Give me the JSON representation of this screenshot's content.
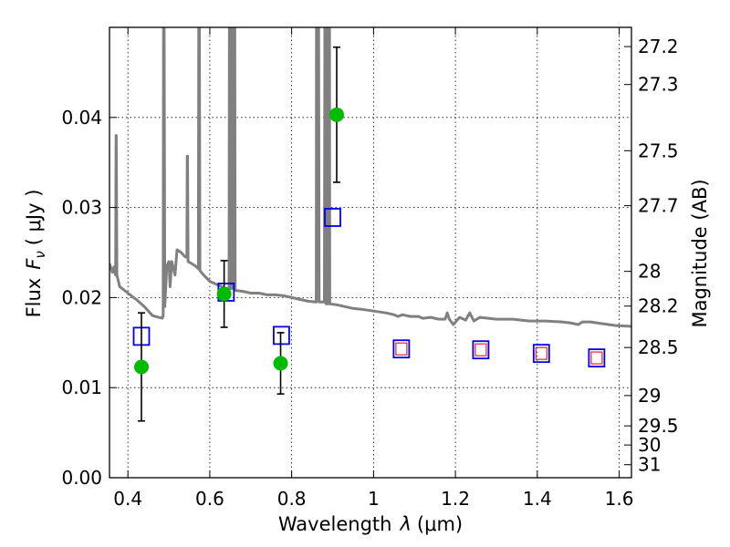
{
  "chart_data": {
    "type": "scatter",
    "xlabel_prefix": "Wavelength",
    "xlabel_symbol": "λ",
    "xlabel_unit": "(μm)",
    "ylabel_prefix": "Flux",
    "ylabel_symbol": "F",
    "ylabel_subscript": "ν",
    "ylabel_unit": "( μJy )",
    "y2label": "Magnitude (AB)",
    "xlim": [
      0.355,
      1.63
    ],
    "ylim": [
      0.0,
      0.05
    ],
    "grid": true,
    "x_ticks": [
      0.4,
      0.6,
      0.8,
      1.0,
      1.2,
      1.4,
      1.6
    ],
    "x_tick_labels": [
      "0.4",
      "0.6",
      "0.8",
      "1",
      "1.2",
      "1.4",
      "1.6"
    ],
    "y_ticks": [
      0.0,
      0.01,
      0.02,
      0.03,
      0.04
    ],
    "y_tick_labels": [
      "0.00",
      "0.01",
      "0.02",
      "0.03",
      "0.04"
    ],
    "y2_ticks": [
      27.2,
      27.3,
      27.5,
      27.7,
      28,
      28.2,
      28.5,
      29,
      29.5,
      30,
      31
    ],
    "y2_tick_labels": [
      "27.2",
      "27.3",
      "27.5",
      "27.7",
      "28",
      "28.2",
      "28.5",
      "29",
      "29.5",
      "30",
      "31"
    ],
    "colors": {
      "observed": "#00bb00",
      "model_photometry": "#0000ee",
      "model_photometry_inner": "#ee2222",
      "spectrum": "#808080",
      "errorbar": "#000000"
    },
    "observed_points": [
      {
        "x": 0.433,
        "y": 0.0123,
        "err": 0.006
      },
      {
        "x": 0.635,
        "y": 0.0204,
        "err": 0.0037
      },
      {
        "x": 0.773,
        "y": 0.0127,
        "err": 0.0034
      },
      {
        "x": 0.91,
        "y": 0.0403,
        "err": 0.0075
      }
    ],
    "model_points": [
      {
        "x": 0.433,
        "y": 0.0157,
        "inner": false
      },
      {
        "x": 0.64,
        "y": 0.0206,
        "inner": false
      },
      {
        "x": 0.775,
        "y": 0.0158,
        "inner": false
      },
      {
        "x": 0.9,
        "y": 0.0289,
        "inner": false
      },
      {
        "x": 1.068,
        "y": 0.0143,
        "inner": true
      },
      {
        "x": 1.262,
        "y": 0.0142,
        "inner": true
      },
      {
        "x": 1.41,
        "y": 0.0138,
        "inner": true
      },
      {
        "x": 1.545,
        "y": 0.0133,
        "inner": true
      }
    ],
    "spectrum": [
      [
        0.355,
        0.0238
      ],
      [
        0.362,
        0.0228
      ],
      [
        0.366,
        0.0234
      ],
      [
        0.368,
        0.0228
      ],
      [
        0.37,
        0.0225
      ],
      [
        0.371,
        0.038
      ],
      [
        0.3715,
        0.038
      ],
      [
        0.373,
        0.0225
      ],
      [
        0.38,
        0.0212
      ],
      [
        0.4,
        0.0205
      ],
      [
        0.42,
        0.0198
      ],
      [
        0.44,
        0.019
      ],
      [
        0.46,
        0.018
      ],
      [
        0.475,
        0.0178
      ],
      [
        0.484,
        0.0177
      ],
      [
        0.486,
        0.018
      ],
      [
        0.487,
        0.05
      ],
      [
        0.4885,
        0.05
      ],
      [
        0.49,
        0.019
      ],
      [
        0.495,
        0.0235
      ],
      [
        0.5,
        0.024
      ],
      [
        0.503,
        0.0212
      ],
      [
        0.507,
        0.024
      ],
      [
        0.515,
        0.0225
      ],
      [
        0.52,
        0.0253
      ],
      [
        0.53,
        0.025
      ],
      [
        0.54,
        0.0245
      ],
      [
        0.544,
        0.0245
      ],
      [
        0.545,
        0.0357
      ],
      [
        0.5455,
        0.0357
      ],
      [
        0.547,
        0.024
      ],
      [
        0.555,
        0.0238
      ],
      [
        0.565,
        0.0235
      ],
      [
        0.572,
        0.0232
      ],
      [
        0.573,
        0.05
      ],
      [
        0.5745,
        0.05
      ],
      [
        0.576,
        0.023
      ],
      [
        0.585,
        0.0225
      ],
      [
        0.6,
        0.0218
      ],
      [
        0.62,
        0.0214
      ],
      [
        0.64,
        0.021
      ],
      [
        0.647,
        0.021
      ],
      [
        0.648,
        0.05
      ],
      [
        0.65,
        0.05
      ],
      [
        0.651,
        0.021
      ],
      [
        0.653,
        0.021
      ],
      [
        0.654,
        0.05
      ],
      [
        0.6555,
        0.05
      ],
      [
        0.657,
        0.021
      ],
      [
        0.658,
        0.021
      ],
      [
        0.659,
        0.05
      ],
      [
        0.661,
        0.05
      ],
      [
        0.662,
        0.0208
      ],
      [
        0.68,
        0.0207
      ],
      [
        0.7,
        0.0205
      ],
      [
        0.72,
        0.0205
      ],
      [
        0.74,
        0.0203
      ],
      [
        0.76,
        0.0203
      ],
      [
        0.78,
        0.0202
      ],
      [
        0.8,
        0.02
      ],
      [
        0.82,
        0.0198
      ],
      [
        0.84,
        0.0196
      ],
      [
        0.86,
        0.0195
      ],
      [
        0.8605,
        0.05
      ],
      [
        0.866,
        0.05
      ],
      [
        0.867,
        0.0195
      ],
      [
        0.88,
        0.0195
      ],
      [
        0.881,
        0.05
      ],
      [
        0.8835,
        0.05
      ],
      [
        0.884,
        0.0193
      ],
      [
        0.889,
        0.0193
      ],
      [
        0.89,
        0.05
      ],
      [
        0.8925,
        0.05
      ],
      [
        0.893,
        0.0193
      ],
      [
        0.91,
        0.0192
      ],
      [
        0.93,
        0.019
      ],
      [
        0.95,
        0.0188
      ],
      [
        0.97,
        0.0187
      ],
      [
        1.0,
        0.0185
      ],
      [
        1.03,
        0.0183
      ],
      [
        1.05,
        0.0181
      ],
      [
        1.06,
        0.0179
      ],
      [
        1.07,
        0.0181
      ],
      [
        1.09,
        0.0179
      ],
      [
        1.11,
        0.0179
      ],
      [
        1.12,
        0.0177
      ],
      [
        1.14,
        0.0178
      ],
      [
        1.16,
        0.0176
      ],
      [
        1.175,
        0.0176
      ],
      [
        1.18,
        0.0183
      ],
      [
        1.185,
        0.0176
      ],
      [
        1.195,
        0.017
      ],
      [
        1.21,
        0.0178
      ],
      [
        1.225,
        0.0175
      ],
      [
        1.235,
        0.0183
      ],
      [
        1.245,
        0.0174
      ],
      [
        1.26,
        0.0178
      ],
      [
        1.28,
        0.0177
      ],
      [
        1.3,
        0.0176
      ],
      [
        1.34,
        0.0176
      ],
      [
        1.38,
        0.0174
      ],
      [
        1.42,
        0.0174
      ],
      [
        1.46,
        0.0173
      ],
      [
        1.48,
        0.0172
      ],
      [
        1.5,
        0.017
      ],
      [
        1.51,
        0.0173
      ],
      [
        1.53,
        0.0173
      ],
      [
        1.56,
        0.0171
      ],
      [
        1.59,
        0.0169
      ],
      [
        1.63,
        0.0168
      ]
    ]
  }
}
